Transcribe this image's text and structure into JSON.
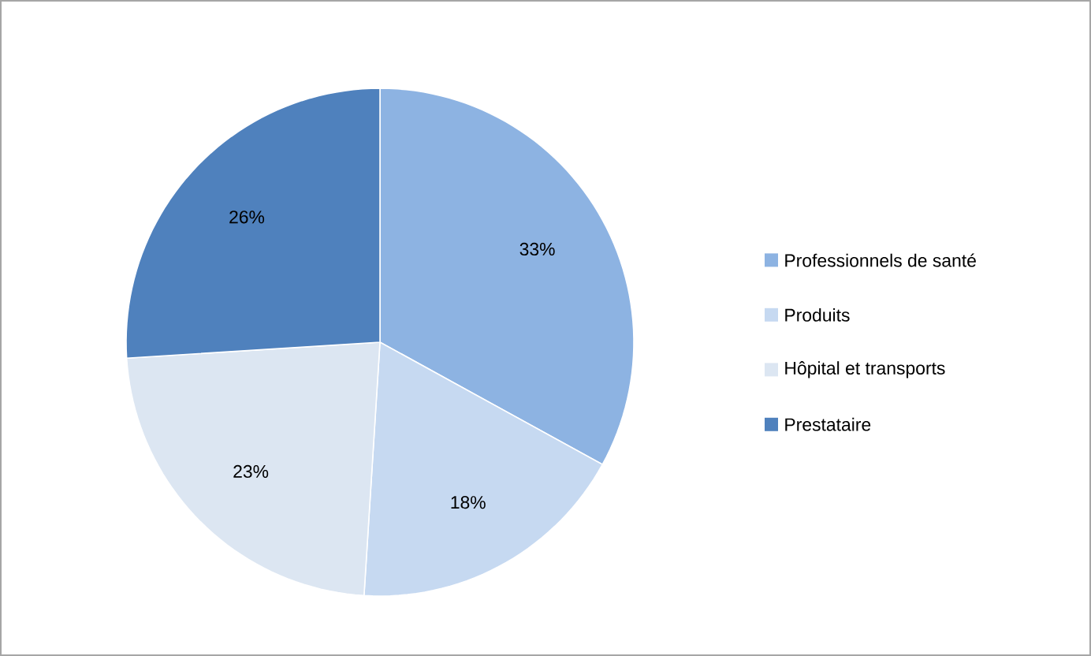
{
  "chart_data": {
    "type": "pie",
    "categories": [
      "Professionnels de santé",
      "Produits",
      "Hôpital et transports",
      "Prestataire"
    ],
    "values": [
      33,
      18,
      23,
      26
    ],
    "colors": [
      "#8db3e2",
      "#c6d9f1",
      "#dce6f2",
      "#4f81bd"
    ],
    "value_labels": [
      "33%",
      "18%",
      "23%",
      "26%"
    ],
    "legend": "right"
  }
}
